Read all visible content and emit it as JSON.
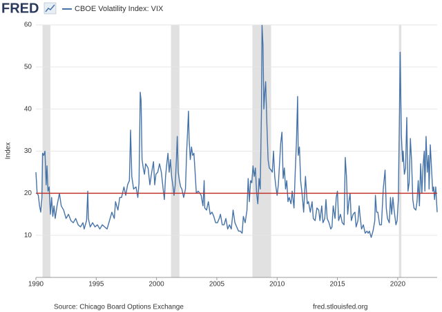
{
  "header": {
    "logo": "FRED"
  },
  "chart_data": {
    "type": "line",
    "series": [
      {
        "name": "CBOE Volatility Index: VIX",
        "color": "#4572a7",
        "values": [
          25,
          20,
          19.5,
          17,
          15.5,
          19,
          29.5,
          29,
          30,
          22,
          26.5,
          20.5,
          21.5,
          15,
          19,
          14.5,
          17,
          14,
          17,
          18.5,
          20,
          17,
          16,
          14,
          15,
          13.5,
          13,
          14,
          12.5,
          12,
          13,
          11.5,
          12.5,
          13.5,
          20.5,
          14,
          12,
          13,
          12,
          12.5,
          11.5,
          12.5,
          12,
          11.5,
          13.5,
          15.5,
          14,
          18,
          16,
          19,
          19,
          21.5,
          19.5,
          22,
          23,
          35,
          24,
          21,
          21.5,
          19,
          22.5,
          44,
          42,
          28,
          26,
          24.5,
          27,
          26,
          22,
          25,
          27.5,
          22,
          24.5,
          25,
          27,
          25,
          21,
          18.5,
          24,
          27,
          29.5,
          25,
          28,
          24,
          22,
          19.5,
          22,
          28,
          33.5,
          25,
          23,
          21.5,
          21,
          19,
          21,
          30,
          33,
          39.5,
          33,
          28,
          31,
          29,
          29.5,
          25,
          20,
          20.5,
          20,
          19.5,
          17,
          23,
          16.5,
          16,
          18,
          15,
          15.5,
          14.5,
          13,
          13,
          14,
          15,
          12.5,
          12.5,
          14,
          11.5,
          12.5,
          11.5,
          16,
          13,
          12,
          11,
          11,
          10.5,
          14.5,
          13,
          16,
          23.5,
          18,
          23,
          22.5,
          26.5,
          24,
          26,
          20,
          17.5,
          23.5,
          21,
          39.5,
          59.9,
          55,
          40,
          44,
          46.5,
          36.5,
          28,
          26,
          25.5,
          25,
          30,
          24,
          21.5,
          19.5,
          22,
          32,
          34.5,
          23.5,
          26,
          21,
          23,
          18,
          19,
          17.5,
          20.5,
          16.5,
          25,
          32,
          43,
          29,
          31,
          23,
          19,
          15.5,
          24,
          17.5,
          18,
          15.5,
          18,
          14,
          13.5,
          16.5,
          16,
          13.5,
          17,
          13,
          14,
          18.5,
          14,
          13,
          11.5,
          12,
          17,
          14,
          19,
          20.5,
          13.5,
          15,
          13,
          12.5,
          28.5,
          24,
          15,
          18,
          20,
          13.5,
          15,
          15.5,
          12,
          13.5,
          17,
          14,
          11.5,
          12.5,
          10.5,
          11,
          10.5,
          11,
          9.5,
          11,
          13.5,
          19.5,
          15.5,
          15.5,
          12.5,
          12.5,
          21,
          25.5,
          16.5,
          14,
          13,
          19,
          15,
          19,
          16,
          12.5,
          13.5,
          18.5,
          40,
          53.5,
          34,
          27.5,
          30,
          24.5,
          26,
          38,
          20.5,
          22.5,
          33,
          27.5,
          18.5,
          16.5,
          16,
          18,
          23,
          17,
          27,
          20,
          26.5,
          30,
          20.5,
          33.5,
          25,
          29,
          21,
          31.5,
          26,
          20.5,
          21.5,
          18.5,
          21.5,
          19,
          15.5
        ]
      }
    ],
    "x": [
      1990,
      1990.1,
      1990.2,
      1990.3,
      1990.4,
      1990.5,
      1990.55,
      1990.65,
      1990.75,
      1990.85,
      1990.92,
      1991,
      1991.1,
      1991.2,
      1991.3,
      1991.4,
      1991.5,
      1991.6,
      1991.75,
      1991.85,
      1991.95,
      1992.1,
      1992.3,
      1992.5,
      1992.7,
      1992.9,
      1993.1,
      1993.3,
      1993.5,
      1993.7,
      1993.9,
      1994,
      1994.1,
      1994.2,
      1994.3,
      1994.35,
      1994.5,
      1994.7,
      1994.9,
      1995.1,
      1995.3,
      1995.5,
      1995.7,
      1995.9,
      1996.1,
      1996.3,
      1996.5,
      1996.6,
      1996.8,
      1996.95,
      1997.1,
      1997.3,
      1997.45,
      1997.6,
      1997.75,
      1997.85,
      1997.95,
      1998.1,
      1998.3,
      1998.45,
      1998.55,
      1998.65,
      1998.72,
      1998.8,
      1998.9,
      1999,
      1999.1,
      1999.3,
      1999.45,
      1999.6,
      1999.75,
      1999.85,
      1999.95,
      2000.1,
      2000.25,
      2000.4,
      2000.55,
      2000.65,
      2000.75,
      2000.85,
      2000.95,
      2001.05,
      2001.15,
      2001.25,
      2001.35,
      2001.45,
      2001.55,
      2001.65,
      2001.72,
      2001.8,
      2001.9,
      2002,
      2002.1,
      2002.25,
      2002.4,
      2002.5,
      2002.55,
      2002.65,
      2002.7,
      2002.8,
      2002.9,
      2003,
      2003.1,
      2003.2,
      2003.3,
      2003.45,
      2003.6,
      2003.7,
      2003.85,
      2003.95,
      2004,
      2004.15,
      2004.3,
      2004.45,
      2004.6,
      2004.75,
      2004.9,
      2005.05,
      2005.2,
      2005.3,
      2005.45,
      2005.6,
      2005.75,
      2005.9,
      2006.05,
      2006.2,
      2006.35,
      2006.5,
      2006.65,
      2006.8,
      2006.95,
      2007.1,
      2007.2,
      2007.35,
      2007.5,
      2007.6,
      2007.7,
      2007.8,
      2007.9,
      2008,
      2008.1,
      2008.2,
      2008.3,
      2008.4,
      2008.5,
      2008.6,
      2008.7,
      2008.75,
      2008.83,
      2008.9,
      2008.98,
      2009.05,
      2009.15,
      2009.25,
      2009.35,
      2009.5,
      2009.6,
      2009.7,
      2009.8,
      2009.9,
      2010,
      2010.1,
      2010.3,
      2010.4,
      2010.5,
      2010.6,
      2010.7,
      2010.8,
      2010.9,
      2011,
      2011.15,
      2011.25,
      2011.4,
      2011.5,
      2011.6,
      2011.7,
      2011.75,
      2011.85,
      2011.95,
      2012.1,
      2012.2,
      2012.35,
      2012.5,
      2012.6,
      2012.75,
      2012.9,
      2013,
      2013.15,
      2013.3,
      2013.45,
      2013.55,
      2013.7,
      2013.8,
      2013.95,
      2014.05,
      2014.15,
      2014.3,
      2014.45,
      2014.55,
      2014.65,
      2014.8,
      2014.9,
      2015,
      2015.1,
      2015.25,
      2015.4,
      2015.55,
      2015.65,
      2015.75,
      2015.85,
      2015.95,
      2016.05,
      2016.15,
      2016.3,
      2016.45,
      2016.55,
      2016.7,
      2016.8,
      2016.9,
      2017,
      2017.15,
      2017.3,
      2017.45,
      2017.55,
      2017.65,
      2017.8,
      2017.95,
      2018.1,
      2018.15,
      2018.25,
      2018.35,
      2018.5,
      2018.65,
      2018.8,
      2018.95,
      2019.05,
      2019.15,
      2019.3,
      2019.4,
      2019.5,
      2019.6,
      2019.7,
      2019.85,
      2019.95,
      2020.05,
      2020.15,
      2020.2,
      2020.3,
      2020.4,
      2020.45,
      2020.55,
      2020.65,
      2020.75,
      2020.85,
      2020.95,
      2021.05,
      2021.15,
      2021.25,
      2021.35,
      2021.5,
      2021.6,
      2021.7,
      2021.8,
      2021.9,
      2022,
      2022.1,
      2022.2,
      2022.25,
      2022.35,
      2022.45,
      2022.55,
      2022.6,
      2022.7,
      2022.8,
      2022.9,
      2022.98,
      2023.05,
      2023.15,
      2023.2,
      2023.27
    ],
    "xlim": [
      1990,
      2023.27
    ],
    "xticks": [
      1990,
      1995,
      2000,
      2005,
      2010,
      2015,
      2020
    ],
    "ylim": [
      0,
      60
    ],
    "yticks": [
      10,
      20,
      30,
      40,
      50,
      60
    ],
    "ylabel": "Index",
    "grid": true,
    "shaded_periods": [
      [
        1990.55,
        1991.2
      ],
      [
        2001.2,
        2001.9
      ],
      [
        2007.95,
        2009.5
      ],
      [
        2020.1,
        2020.3
      ]
    ],
    "shade_color": "#e1e1e1",
    "hline": 20,
    "hline_color": "#c0322b"
  },
  "footer": {
    "source": "Source: Chicago Board Options Exchange",
    "site": "fred.stlouisfed.org"
  }
}
